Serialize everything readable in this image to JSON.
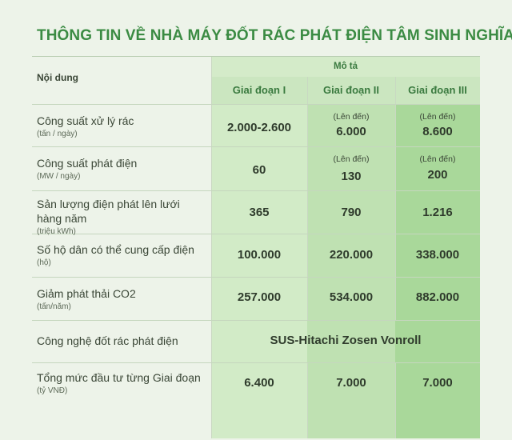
{
  "title": "THÔNG TIN VỀ NHÀ MÁY ĐỐT RÁC PHÁT ĐIỆN TÂM SINH NGHĨA",
  "header": {
    "content_label": "Nội dung",
    "description_label": "Mô tả",
    "phases": [
      "Giai đoạn I",
      "Giai đoạn II",
      "Giai đoạn III"
    ]
  },
  "rows": [
    {
      "label": "Công suất xử lý rác",
      "unit": "(tấn / ngày)",
      "values": [
        {
          "prefix": "",
          "value": "2.000-2.600"
        },
        {
          "prefix": "(Lên đến)",
          "value": "6.000"
        },
        {
          "prefix": "(Lên đến)",
          "value": "8.600"
        }
      ]
    },
    {
      "label": "Công suất phát điện",
      "unit": "(MW / ngày)",
      "values": [
        {
          "prefix": "",
          "value": "60"
        },
        {
          "prefix": "(Lên đến)",
          "value": "130"
        },
        {
          "prefix": "(Lên đến)",
          "value": "200"
        }
      ]
    },
    {
      "label": "Sản lượng điện phát lên lưới hàng năm",
      "unit": "(triệu kWh)",
      "values": [
        {
          "prefix": "",
          "value": "365"
        },
        {
          "prefix": "",
          "value": "790"
        },
        {
          "prefix": "",
          "value": "1.216"
        }
      ]
    },
    {
      "label": "Số hộ dân có thể cung cấp điện",
      "unit": "(hộ)",
      "values": [
        {
          "prefix": "",
          "value": "100.000"
        },
        {
          "prefix": "",
          "value": "220.000"
        },
        {
          "prefix": "",
          "value": "338.000"
        }
      ]
    },
    {
      "label": "Giảm phát thải CO2",
      "unit": "(tấn/năm)",
      "values": [
        {
          "prefix": "",
          "value": "257.000"
        },
        {
          "prefix": "",
          "value": "534.000"
        },
        {
          "prefix": "",
          "value": "882.000"
        }
      ]
    },
    {
      "label": "Công nghệ đốt rác phát điện",
      "unit": "",
      "merged_value": "SUS-Hitachi Zosen Vonroll"
    },
    {
      "label": "Tổng mức đầu tư từng Giai đoạn",
      "unit": "(tỷ VNĐ)",
      "values": [
        {
          "prefix": "",
          "value": "6.400"
        },
        {
          "prefix": "",
          "value": "7.000"
        },
        {
          "prefix": "",
          "value": "7.000"
        }
      ]
    }
  ],
  "colors": {
    "title": "#3b8b43",
    "background": "#edf3e9",
    "phase1": "#d2ebc7",
    "phase2": "#bfe1b2",
    "phase3": "#a9d89a"
  }
}
